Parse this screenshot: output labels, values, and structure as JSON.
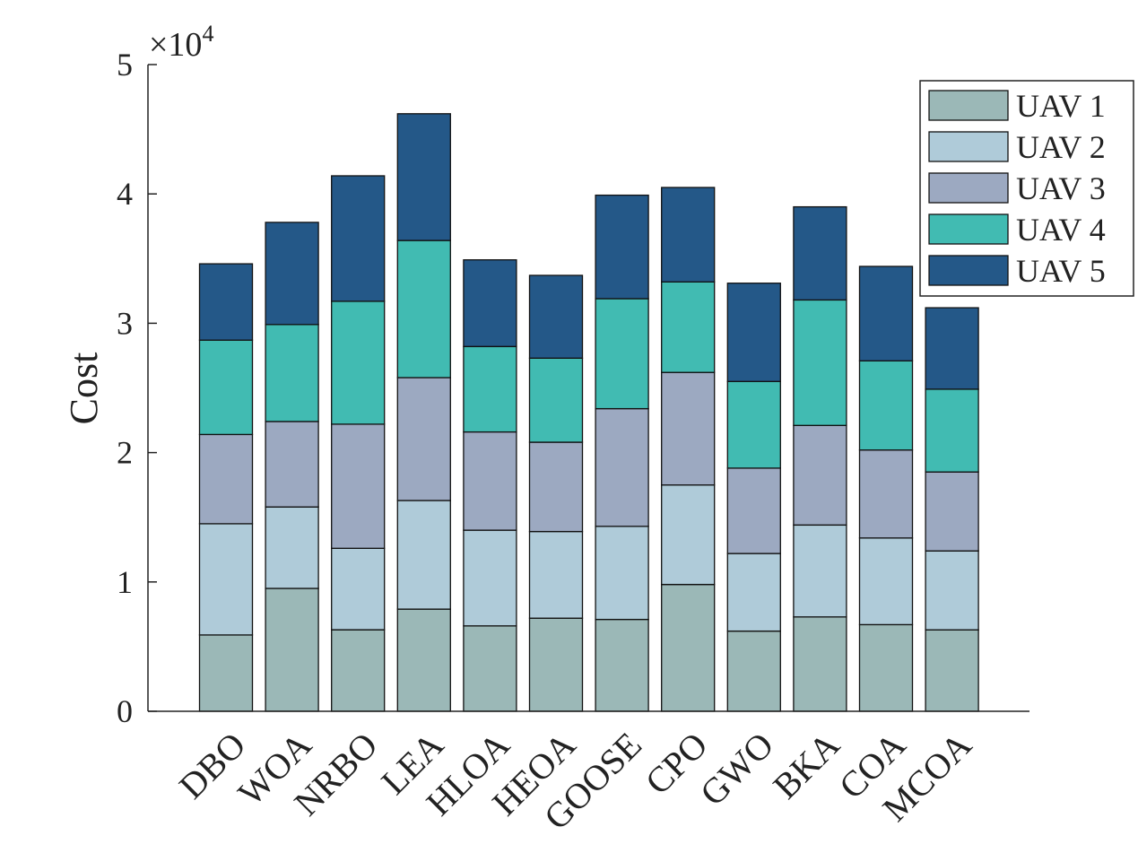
{
  "chart_data": {
    "type": "bar",
    "stacked": true,
    "title": "",
    "xlabel": "",
    "ylabel": "Cost",
    "y_scale_label": "×10",
    "y_scale_exponent": "4",
    "ylim": [
      0,
      50000
    ],
    "yticks": [
      0,
      10000,
      20000,
      30000,
      40000,
      50000
    ],
    "ytick_labels": [
      "0",
      "1",
      "2",
      "3",
      "4",
      "5"
    ],
    "categories": [
      "DBO",
      "WOA",
      "NRBO",
      "LEA",
      "HLOA",
      "HEOA",
      "GOOSE",
      "CPO",
      "GWO",
      "BKA",
      "COA",
      "MCOA"
    ],
    "legend_position": "top-right",
    "series": [
      {
        "name": "UAV 1",
        "color": "#9BB8B7",
        "values": [
          5900,
          9500,
          6300,
          7900,
          6600,
          7200,
          7100,
          9800,
          6200,
          7300,
          6700,
          6300
        ]
      },
      {
        "name": "UAV 2",
        "color": "#AFCBD9",
        "values": [
          8600,
          6300,
          6300,
          8400,
          7400,
          6700,
          7200,
          7700,
          6000,
          7100,
          6700,
          6100
        ]
      },
      {
        "name": "UAV 3",
        "color": "#9CA9C1",
        "values": [
          6900,
          6600,
          9600,
          9500,
          7600,
          6900,
          9100,
          8700,
          6600,
          7700,
          6800,
          6100
        ]
      },
      {
        "name": "UAV 4",
        "color": "#41BBB2",
        "values": [
          7300,
          7500,
          9500,
          10600,
          6600,
          6500,
          8500,
          7000,
          6700,
          9700,
          6900,
          6400
        ]
      },
      {
        "name": "UAV 5",
        "color": "#245888",
        "values": [
          5900,
          7900,
          9700,
          9800,
          6700,
          6400,
          8000,
          7300,
          7600,
          7200,
          7300,
          6300
        ]
      }
    ]
  }
}
